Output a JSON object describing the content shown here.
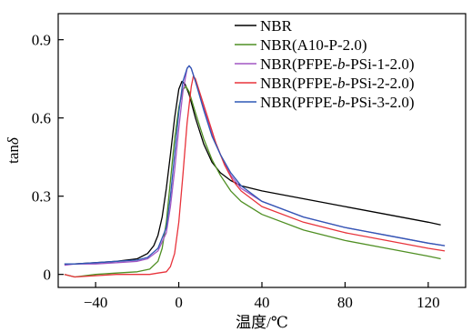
{
  "chart_data": {
    "type": "line",
    "xlabel": "温度/℃",
    "ylabel_main": "tan",
    "ylabel_symbol": "δ",
    "xlim": [
      -58,
      138
    ],
    "ylim": [
      -0.05,
      1.0
    ],
    "xticks": [
      -40,
      0,
      40,
      80,
      120
    ],
    "yticks": [
      0,
      0.3,
      0.6,
      0.9
    ],
    "ytick_labels": [
      "0",
      "0.3",
      "0.6",
      "0.9"
    ],
    "legend": {
      "placement": "top-right"
    },
    "series": [
      {
        "color": "#000000",
        "label_parts": [
          {
            "t": "NBR"
          }
        ],
        "points": [
          [
            -55,
            0.04
          ],
          [
            -50,
            0.04
          ],
          [
            -40,
            0.045
          ],
          [
            -30,
            0.05
          ],
          [
            -20,
            0.06
          ],
          [
            -15,
            0.08
          ],
          [
            -12,
            0.11
          ],
          [
            -10,
            0.15
          ],
          [
            -8,
            0.22
          ],
          [
            -6,
            0.33
          ],
          [
            -4,
            0.46
          ],
          [
            -2,
            0.6
          ],
          [
            0,
            0.71
          ],
          [
            1.5,
            0.74
          ],
          [
            3,
            0.73
          ],
          [
            5,
            0.69
          ],
          [
            8,
            0.6
          ],
          [
            12,
            0.5
          ],
          [
            16,
            0.43
          ],
          [
            20,
            0.39
          ],
          [
            25,
            0.36
          ],
          [
            30,
            0.34
          ],
          [
            40,
            0.32
          ],
          [
            60,
            0.29
          ],
          [
            80,
            0.26
          ],
          [
            100,
            0.23
          ],
          [
            120,
            0.2
          ],
          [
            126,
            0.19
          ]
        ]
      },
      {
        "color": "#4f8f23",
        "label_parts": [
          {
            "t": "NBR(A10-P-2.0)"
          }
        ],
        "points": [
          [
            -55,
            0.0
          ],
          [
            -50,
            -0.01
          ],
          [
            -40,
            0.0
          ],
          [
            -30,
            0.005
          ],
          [
            -20,
            0.01
          ],
          [
            -14,
            0.02
          ],
          [
            -10,
            0.05
          ],
          [
            -8,
            0.1
          ],
          [
            -6,
            0.2
          ],
          [
            -4,
            0.36
          ],
          [
            -2,
            0.52
          ],
          [
            0,
            0.64
          ],
          [
            2,
            0.71
          ],
          [
            3.5,
            0.72
          ],
          [
            5,
            0.7
          ],
          [
            8,
            0.62
          ],
          [
            12,
            0.52
          ],
          [
            16,
            0.44
          ],
          [
            20,
            0.38
          ],
          [
            25,
            0.32
          ],
          [
            30,
            0.28
          ],
          [
            40,
            0.23
          ],
          [
            60,
            0.17
          ],
          [
            80,
            0.13
          ],
          [
            100,
            0.1
          ],
          [
            120,
            0.07
          ],
          [
            126,
            0.06
          ]
        ]
      },
      {
        "color": "#a256c4",
        "label_parts": [
          {
            "t": "NBR(PFPE-"
          },
          {
            "t": "b",
            "i": true
          },
          {
            "t": "-PSi-1-2.0)"
          }
        ],
        "points": [
          [
            -55,
            0.035
          ],
          [
            -50,
            0.04
          ],
          [
            -40,
            0.04
          ],
          [
            -30,
            0.045
          ],
          [
            -20,
            0.05
          ],
          [
            -15,
            0.06
          ],
          [
            -10,
            0.09
          ],
          [
            -6,
            0.16
          ],
          [
            -4,
            0.26
          ],
          [
            -2,
            0.4
          ],
          [
            0,
            0.56
          ],
          [
            2,
            0.7
          ],
          [
            4,
            0.79
          ],
          [
            5,
            0.8
          ],
          [
            6,
            0.79
          ],
          [
            8,
            0.74
          ],
          [
            12,
            0.64
          ],
          [
            16,
            0.54
          ],
          [
            20,
            0.46
          ],
          [
            25,
            0.38
          ],
          [
            30,
            0.33
          ],
          [
            40,
            0.28
          ],
          [
            60,
            0.22
          ],
          [
            80,
            0.18
          ],
          [
            100,
            0.15
          ],
          [
            120,
            0.12
          ],
          [
            128,
            0.11
          ]
        ]
      },
      {
        "color": "#e8333b",
        "label_parts": [
          {
            "t": "NBR(PFPE-"
          },
          {
            "t": "b",
            "i": true
          },
          {
            "t": "-PSi-2-2.0)"
          }
        ],
        "points": [
          [
            -55,
            0.0
          ],
          [
            -50,
            -0.01
          ],
          [
            -40,
            -0.005
          ],
          [
            -30,
            0.0
          ],
          [
            -20,
            0.0
          ],
          [
            -14,
            0.0
          ],
          [
            -10,
            0.005
          ],
          [
            -6,
            0.01
          ],
          [
            -4,
            0.03
          ],
          [
            -2,
            0.08
          ],
          [
            0,
            0.2
          ],
          [
            2,
            0.38
          ],
          [
            4,
            0.58
          ],
          [
            6,
            0.72
          ],
          [
            7,
            0.76
          ],
          [
            8,
            0.75
          ],
          [
            10,
            0.7
          ],
          [
            14,
            0.6
          ],
          [
            18,
            0.5
          ],
          [
            22,
            0.42
          ],
          [
            26,
            0.36
          ],
          [
            30,
            0.32
          ],
          [
            40,
            0.26
          ],
          [
            60,
            0.2
          ],
          [
            80,
            0.16
          ],
          [
            100,
            0.13
          ],
          [
            120,
            0.1
          ],
          [
            128,
            0.09
          ]
        ]
      },
      {
        "color": "#2f58b5",
        "label_parts": [
          {
            "t": "NBR(PFPE-"
          },
          {
            "t": "b",
            "i": true
          },
          {
            "t": "-PSi-3-2.0)"
          }
        ],
        "points": [
          [
            -55,
            0.04
          ],
          [
            -50,
            0.04
          ],
          [
            -40,
            0.045
          ],
          [
            -30,
            0.05
          ],
          [
            -20,
            0.055
          ],
          [
            -15,
            0.065
          ],
          [
            -10,
            0.1
          ],
          [
            -6,
            0.18
          ],
          [
            -4,
            0.3
          ],
          [
            -2,
            0.46
          ],
          [
            0,
            0.62
          ],
          [
            2,
            0.74
          ],
          [
            4,
            0.79
          ],
          [
            5,
            0.8
          ],
          [
            6,
            0.79
          ],
          [
            8,
            0.74
          ],
          [
            12,
            0.63
          ],
          [
            16,
            0.53
          ],
          [
            20,
            0.46
          ],
          [
            25,
            0.39
          ],
          [
            30,
            0.34
          ],
          [
            40,
            0.28
          ],
          [
            60,
            0.22
          ],
          [
            80,
            0.18
          ],
          [
            100,
            0.15
          ],
          [
            120,
            0.12
          ],
          [
            128,
            0.11
          ]
        ]
      }
    ]
  }
}
